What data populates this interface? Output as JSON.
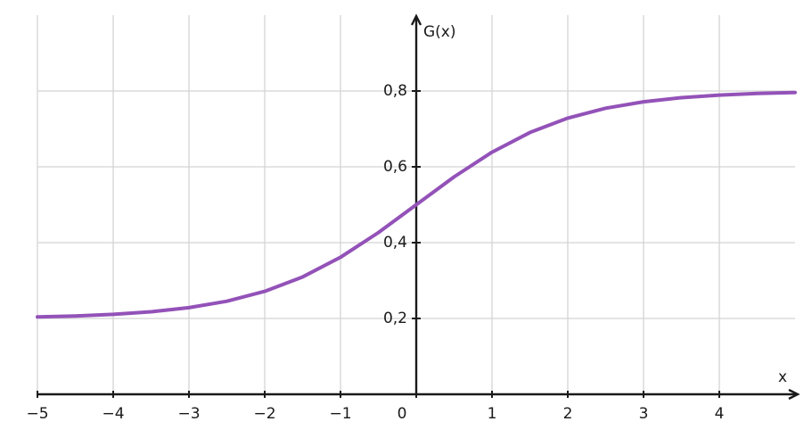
{
  "chart_data": {
    "type": "line",
    "x_label": "x",
    "y_label": "G(x)",
    "x": [
      -5,
      -4.5,
      -4,
      -3.5,
      -3,
      -2.5,
      -2,
      -1.5,
      -1,
      -0.5,
      0,
      0.5,
      1,
      1.5,
      2,
      2.5,
      3,
      3.5,
      4,
      4.5,
      5
    ],
    "values": [
      0.204,
      0.2066,
      0.2108,
      0.2176,
      0.2285,
      0.2455,
      0.2715,
      0.3095,
      0.3614,
      0.4265,
      0.5,
      0.5735,
      0.6386,
      0.6905,
      0.7285,
      0.7545,
      0.7715,
      0.7824,
      0.7892,
      0.7934,
      0.796
    ],
    "color": "#9352b8",
    "xlim": [
      -5,
      5
    ],
    "ylim": [
      0,
      1
    ],
    "xticks": [
      {
        "value": -5,
        "label": "−5"
      },
      {
        "value": -4,
        "label": "−4"
      },
      {
        "value": -3,
        "label": "−3"
      },
      {
        "value": -2,
        "label": "−2"
      },
      {
        "value": -1,
        "label": "−1"
      },
      0,
      1,
      2,
      3,
      4
    ],
    "yticks": [
      {
        "value": 0.2,
        "label": "0,2"
      },
      {
        "value": 0.4,
        "label": "0,4"
      },
      {
        "value": 0.6,
        "label": "0,6"
      },
      {
        "value": 0.8,
        "label": "0,8"
      }
    ],
    "grid": true
  }
}
